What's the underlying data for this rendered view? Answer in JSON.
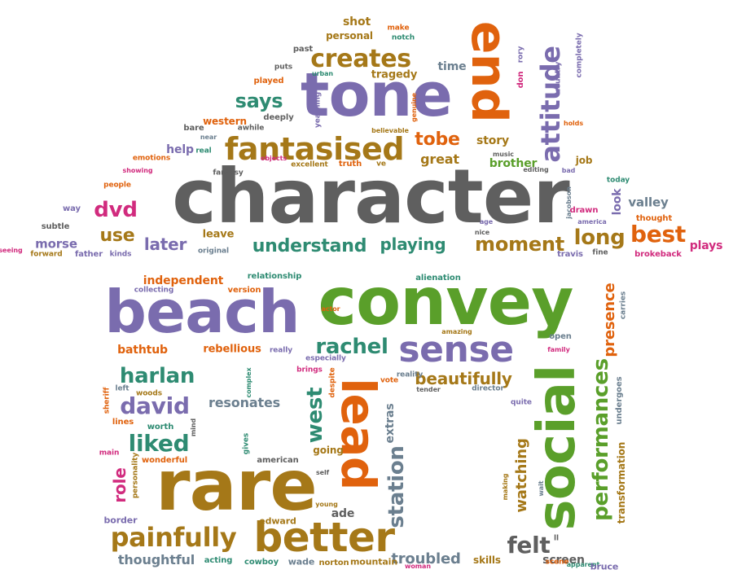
{
  "palette": {
    "gray": "#5f5f5f",
    "purple": "#7a6cae",
    "green": "#5a9f2a",
    "orange": "#e0620d",
    "brown": "#a57818",
    "teal": "#2e8b72",
    "pink": "#d12b7e",
    "slate": "#6b7f8f"
  },
  "words": [
    {
      "text": "character",
      "color": "gray"
    },
    {
      "text": "convey",
      "color": "green"
    },
    {
      "text": "beach",
      "color": "purple"
    },
    {
      "text": "rare",
      "color": "brown"
    },
    {
      "text": "tone",
      "color": "purple"
    },
    {
      "text": "end",
      "color": "orange"
    },
    {
      "text": "social",
      "color": "green"
    },
    {
      "text": "lead",
      "color": "orange"
    },
    {
      "text": "better",
      "color": "brown"
    },
    {
      "text": "sense",
      "color": "purple"
    },
    {
      "text": "fantasised",
      "color": "brown"
    },
    {
      "text": "attitude",
      "color": "purple"
    },
    {
      "text": "painfully",
      "color": "brown"
    },
    {
      "text": "performances",
      "color": "green"
    },
    {
      "text": "creates",
      "color": "brown"
    },
    {
      "text": "rachel",
      "color": "teal"
    },
    {
      "text": "harlan",
      "color": "teal"
    },
    {
      "text": "david",
      "color": "purple"
    },
    {
      "text": "liked",
      "color": "teal"
    },
    {
      "text": "station",
      "color": "slate"
    },
    {
      "text": "west",
      "color": "teal"
    },
    {
      "text": "beautifully",
      "color": "brown"
    },
    {
      "text": "moment",
      "color": "brown"
    },
    {
      "text": "understand",
      "color": "teal"
    },
    {
      "text": "playing",
      "color": "teal"
    },
    {
      "text": "long",
      "color": "brown"
    },
    {
      "text": "best",
      "color": "orange"
    },
    {
      "text": "says",
      "color": "teal"
    },
    {
      "text": "tobe",
      "color": "orange"
    },
    {
      "text": "dvd",
      "color": "pink"
    },
    {
      "text": "use",
      "color": "brown"
    },
    {
      "text": "later",
      "color": "purple"
    },
    {
      "text": "felt",
      "color": "gray"
    },
    {
      "text": "troubled",
      "color": "slate"
    },
    {
      "text": "presence",
      "color": "orange"
    },
    {
      "text": "resonates",
      "color": "slate"
    },
    {
      "text": "watching",
      "color": "brown"
    },
    {
      "text": "role",
      "color": "pink"
    },
    {
      "text": "thoughtful",
      "color": "slate"
    },
    {
      "text": "independent",
      "color": "orange"
    },
    {
      "text": "bathtub",
      "color": "orange"
    },
    {
      "text": "rebellious",
      "color": "orange"
    },
    {
      "text": "great",
      "color": "brown"
    },
    {
      "text": "story",
      "color": "brown"
    },
    {
      "text": "brother",
      "color": "green"
    },
    {
      "text": "shot",
      "color": "brown"
    },
    {
      "text": "tragedy",
      "color": "brown"
    },
    {
      "text": "time",
      "color": "slate"
    },
    {
      "text": "help",
      "color": "purple"
    },
    {
      "text": "morse",
      "color": "purple"
    },
    {
      "text": "screen",
      "color": "gray"
    },
    {
      "text": "extras",
      "color": "slate"
    },
    {
      "text": "ade",
      "color": "gray"
    },
    {
      "text": "going",
      "color": "brown"
    },
    {
      "text": "valley",
      "color": "slate"
    },
    {
      "text": "look",
      "color": "purple"
    },
    {
      "text": "plays",
      "color": "pink"
    },
    {
      "text": "leave",
      "color": "brown"
    },
    {
      "text": "western",
      "color": "orange"
    },
    {
      "text": "personal",
      "color": "brown"
    },
    {
      "text": "transformation",
      "color": "brown"
    },
    {
      "text": "undergoes",
      "color": "slate"
    },
    {
      "text": "skills",
      "color": "brown"
    },
    {
      "text": "wade",
      "color": "slate"
    },
    {
      "text": "mountain",
      "color": "brown"
    },
    {
      "text": "norton",
      "color": "brown"
    },
    {
      "text": "cowboy",
      "color": "teal"
    },
    {
      "text": "acting",
      "color": "teal"
    },
    {
      "text": "edward",
      "color": "brown"
    },
    {
      "text": "border",
      "color": "purple"
    },
    {
      "text": "personality",
      "color": "brown"
    },
    {
      "text": "wonderful",
      "color": "orange"
    },
    {
      "text": "american",
      "color": "gray"
    },
    {
      "text": "worth",
      "color": "teal"
    },
    {
      "text": "sheriff",
      "color": "orange"
    },
    {
      "text": "lines",
      "color": "orange"
    },
    {
      "text": "woods",
      "color": "brown"
    },
    {
      "text": "left",
      "color": "slate"
    },
    {
      "text": "main",
      "color": "pink"
    },
    {
      "text": "gives",
      "color": "teal"
    },
    {
      "text": "complex",
      "color": "teal"
    },
    {
      "text": "mind",
      "color": "gray"
    },
    {
      "text": "self",
      "color": "gray"
    },
    {
      "text": "young",
      "color": "brown"
    },
    {
      "text": "despite",
      "color": "orange"
    },
    {
      "text": "brings",
      "color": "pink"
    },
    {
      "text": "vote",
      "color": "orange"
    },
    {
      "text": "reality",
      "color": "slate"
    },
    {
      "text": "tender",
      "color": "gray"
    },
    {
      "text": "director",
      "color": "slate"
    },
    {
      "text": "quite",
      "color": "purple"
    },
    {
      "text": "making",
      "color": "brown"
    },
    {
      "text": "wait",
      "color": "slate"
    },
    {
      "text": "ll",
      "color": "gray"
    },
    {
      "text": "scene",
      "color": "orange"
    },
    {
      "text": "apparent",
      "color": "teal"
    },
    {
      "text": "bruce",
      "color": "purple"
    },
    {
      "text": "woman",
      "color": "pink"
    },
    {
      "text": "especially",
      "color": "purple"
    },
    {
      "text": "really",
      "color": "purple"
    },
    {
      "text": "amazing",
      "color": "brown"
    },
    {
      "text": "open",
      "color": "slate"
    },
    {
      "text": "family",
      "color": "pink"
    },
    {
      "text": "carries",
      "color": "slate"
    },
    {
      "text": "alienation",
      "color": "teal"
    },
    {
      "text": "actor",
      "color": "orange"
    },
    {
      "text": "relationship",
      "color": "teal"
    },
    {
      "text": "version",
      "color": "orange"
    },
    {
      "text": "collecting",
      "color": "purple"
    },
    {
      "text": "original",
      "color": "slate"
    },
    {
      "text": "kinds",
      "color": "purple"
    },
    {
      "text": "father",
      "color": "purple"
    },
    {
      "text": "forward",
      "color": "brown"
    },
    {
      "text": "seeing",
      "color": "pink"
    },
    {
      "text": "subtle",
      "color": "gray"
    },
    {
      "text": "way",
      "color": "purple"
    },
    {
      "text": "people",
      "color": "orange"
    },
    {
      "text": "showing",
      "color": "pink"
    },
    {
      "text": "emotions",
      "color": "orange"
    },
    {
      "text": "fantasy",
      "color": "gray"
    },
    {
      "text": "real",
      "color": "teal"
    },
    {
      "text": "bare",
      "color": "gray"
    },
    {
      "text": "near",
      "color": "slate"
    },
    {
      "text": "awhile",
      "color": "gray"
    },
    {
      "text": "deeply",
      "color": "gray"
    },
    {
      "text": "yearning",
      "color": "purple"
    },
    {
      "text": "objects",
      "color": "pink"
    },
    {
      "text": "excellent",
      "color": "brown"
    },
    {
      "text": "truth",
      "color": "orange"
    },
    {
      "text": "ve",
      "color": "brown"
    },
    {
      "text": "believable",
      "color": "brown"
    },
    {
      "text": "genuine",
      "color": "orange"
    },
    {
      "text": "don",
      "color": "pink"
    },
    {
      "text": "played",
      "color": "orange"
    },
    {
      "text": "puts",
      "color": "gray"
    },
    {
      "text": "urban",
      "color": "teal"
    },
    {
      "text": "past",
      "color": "gray"
    },
    {
      "text": "notch",
      "color": "teal"
    },
    {
      "text": "make",
      "color": "orange"
    },
    {
      "text": "rory",
      "color": "purple"
    },
    {
      "text": "country",
      "color": "purple"
    },
    {
      "text": "completely",
      "color": "purple"
    },
    {
      "text": "holds",
      "color": "orange"
    },
    {
      "text": "music",
      "color": "gray"
    },
    {
      "text": "editing",
      "color": "gray"
    },
    {
      "text": "bad",
      "color": "purple"
    },
    {
      "text": "job",
      "color": "brown"
    },
    {
      "text": "today",
      "color": "teal"
    },
    {
      "text": "jacobson",
      "color": "slate"
    },
    {
      "text": "age",
      "color": "purple"
    },
    {
      "text": "nice",
      "color": "gray"
    },
    {
      "text": "drawn",
      "color": "pink"
    },
    {
      "text": "america",
      "color": "purple"
    },
    {
      "text": "thought",
      "color": "orange"
    },
    {
      "text": "travis",
      "color": "purple"
    },
    {
      "text": "fine",
      "color": "gray"
    },
    {
      "text": "brokeback",
      "color": "pink"
    }
  ]
}
